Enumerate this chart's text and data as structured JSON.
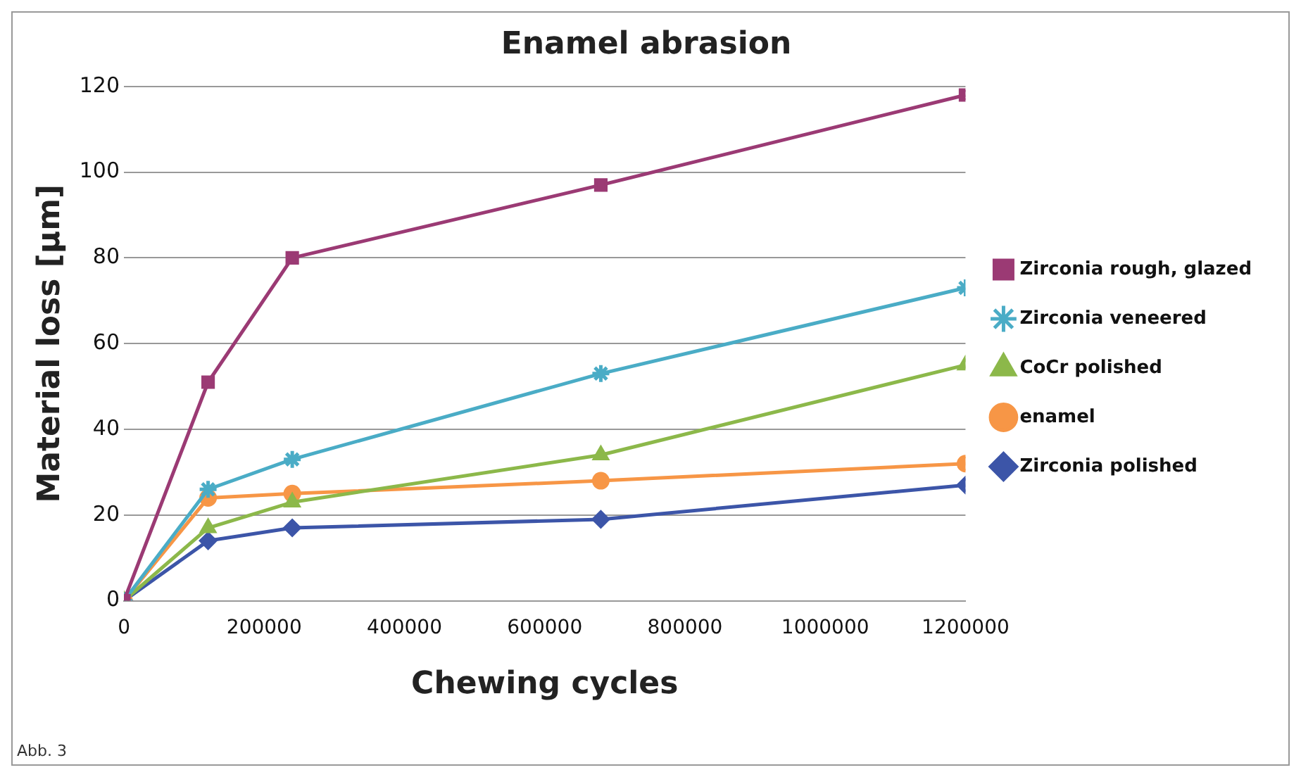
{
  "chart_data": {
    "type": "line",
    "title": "Enamel abrasion",
    "xlabel": "Chewing cycles",
    "ylabel": "Material loss [µm]",
    "x": [
      0,
      120000,
      240000,
      680000,
      1200000
    ],
    "series": [
      {
        "name": "Zirconia rough, glazed",
        "color": "#9b3a74",
        "marker": "square",
        "values": [
          0,
          51,
          80,
          97,
          118
        ]
      },
      {
        "name": "Zirconia veneered",
        "color": "#4aacc6",
        "marker": "cross",
        "values": [
          0,
          26,
          33,
          53,
          73
        ]
      },
      {
        "name": "CoCr polished",
        "color": "#8cb84a",
        "marker": "triangle",
        "values": [
          0,
          17,
          23,
          34,
          55
        ]
      },
      {
        "name": "enamel",
        "color": "#f79646",
        "marker": "circle",
        "values": [
          0,
          24,
          25,
          28,
          32
        ]
      },
      {
        "name": "Zirconia polished",
        "color": "#3c55a8",
        "marker": "diamond",
        "values": [
          0,
          14,
          17,
          19,
          27
        ]
      }
    ],
    "xlim": [
      0,
      1200000
    ],
    "xticks": [
      0,
      200000,
      400000,
      600000,
      800000,
      1000000,
      1200000
    ],
    "ylim": [
      0,
      120
    ],
    "yticks": [
      0,
      20,
      40,
      60,
      80,
      100,
      120
    ],
    "grid": "y",
    "legend": "right",
    "annotations": [
      "Abb. 3"
    ]
  }
}
